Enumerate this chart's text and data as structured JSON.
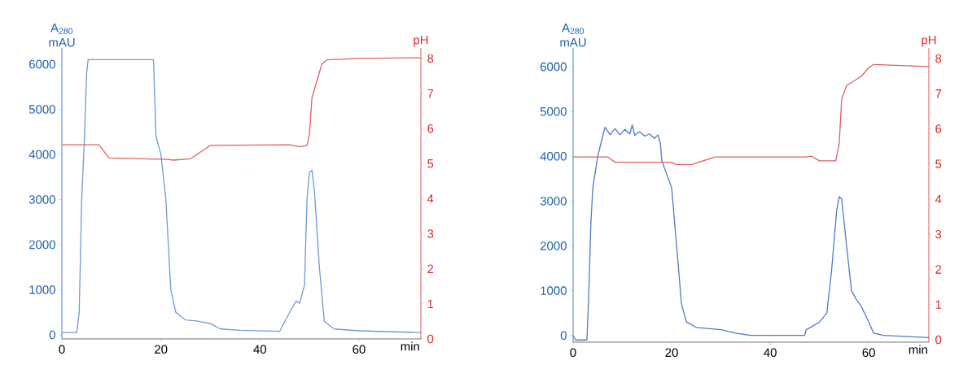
{
  "chart_data": [
    {
      "type": "line",
      "xlabel": "min",
      "ylabel": "A$_{280}$ mAU",
      "y2label": "pH",
      "marker": "none",
      "line_style": "solid",
      "legend": false,
      "grid": false,
      "xlim": [
        0,
        72.5
      ],
      "xticks": [
        0,
        20,
        40,
        60
      ],
      "ylim": [
        -90,
        6360
      ],
      "yticks": [
        0,
        1000,
        2000,
        3000,
        4000,
        5000,
        6000
      ],
      "y2lim": [
        0,
        8.3
      ],
      "y2ticks": [
        0,
        1,
        2,
        3,
        4,
        5,
        6,
        7,
        8
      ],
      "series": [
        {
          "color": "#6f9bd1",
          "x": [
            0,
            3,
            3.5,
            4,
            4.5,
            5,
            5.3,
            18.5,
            19,
            20,
            21,
            22,
            23,
            25,
            27.2,
            30,
            32,
            36,
            44,
            46,
            47.3,
            48,
            49,
            49.5,
            50,
            50.5,
            51,
            52,
            53,
            55,
            60,
            72.5
          ],
          "values": [
            50,
            50,
            500,
            3000,
            4200,
            5800,
            6100,
            6100,
            4400,
            4000,
            3000,
            1000,
            500,
            330,
            310,
            250,
            130,
            100,
            80,
            500,
            750,
            700,
            1100,
            3000,
            3600,
            3650,
            3200,
            1500,
            300,
            130,
            90,
            50
          ]
        },
        {
          "color": "#e06060",
          "axis": "y2",
          "x": [
            0,
            7.5,
            9.5,
            21.5,
            22.5,
            26,
            30,
            46,
            48,
            49.5,
            50,
            50.5,
            51.5,
            52.5,
            53.5,
            60,
            72.5
          ],
          "values": [
            5.54,
            5.54,
            5.16,
            5.12,
            5.1,
            5.14,
            5.52,
            5.54,
            5.48,
            5.52,
            5.84,
            6.88,
            7.36,
            7.84,
            7.96,
            8.0,
            8.02
          ]
        }
      ]
    },
    {
      "type": "line",
      "xlabel": "min",
      "ylabel": "A$_{280}$ mAU",
      "y2label": "pH",
      "marker": "none",
      "line_style": "solid",
      "legend": false,
      "grid": false,
      "xlim": [
        0,
        72.2
      ],
      "xticks": [
        0,
        20,
        40,
        60
      ],
      "ylim": [
        -150,
        6420
      ],
      "yticks": [
        0,
        1000,
        2000,
        3000,
        4000,
        5000,
        6000
      ],
      "y2lim": [
        -0.07,
        8.3
      ],
      "y2ticks": [
        0,
        1,
        2,
        3,
        4,
        5,
        6,
        7,
        8
      ],
      "series": [
        {
          "color": "#4a7cc4",
          "x": [
            0,
            0.5,
            2.8,
            3.2,
            3.6,
            4,
            5,
            6,
            6.5,
            7.5,
            8.5,
            9.5,
            10.5,
            11.5,
            12,
            12.5,
            13.5,
            14.5,
            15.5,
            16.5,
            17.2,
            17.7,
            18,
            19,
            20,
            21,
            22,
            23,
            25,
            30,
            33,
            36,
            47,
            47.3,
            48,
            50,
            51.5,
            52.5,
            53.5,
            54,
            54.5,
            55.5,
            56.5,
            57.5,
            58.5,
            60,
            61,
            63,
            72.2
          ],
          "values": [
            0,
            -100,
            -100,
            1000,
            2500,
            3300,
            4000,
            4450,
            4650,
            4480,
            4620,
            4480,
            4600,
            4500,
            4700,
            4470,
            4550,
            4450,
            4500,
            4400,
            4480,
            4300,
            3900,
            3600,
            3300,
            2000,
            700,
            300,
            180,
            130,
            50,
            0,
            0,
            130,
            170,
            300,
            500,
            1500,
            2800,
            3100,
            3050,
            2000,
            1000,
            800,
            650,
            300,
            50,
            0,
            -50
          ]
        },
        {
          "color": "#e06060",
          "axis": "y2",
          "x": [
            0,
            7,
            8.5,
            20,
            21,
            24,
            28.8,
            47,
            48.4,
            50,
            53.3,
            54,
            54.5,
            55.5,
            57,
            58.5,
            60,
            61,
            72.2
          ],
          "values": [
            5.2,
            5.2,
            5.05,
            5.05,
            4.98,
            4.98,
            5.2,
            5.2,
            5.22,
            5.09,
            5.09,
            5.56,
            6.84,
            7.23,
            7.36,
            7.49,
            7.74,
            7.83,
            7.77
          ]
        }
      ]
    }
  ]
}
